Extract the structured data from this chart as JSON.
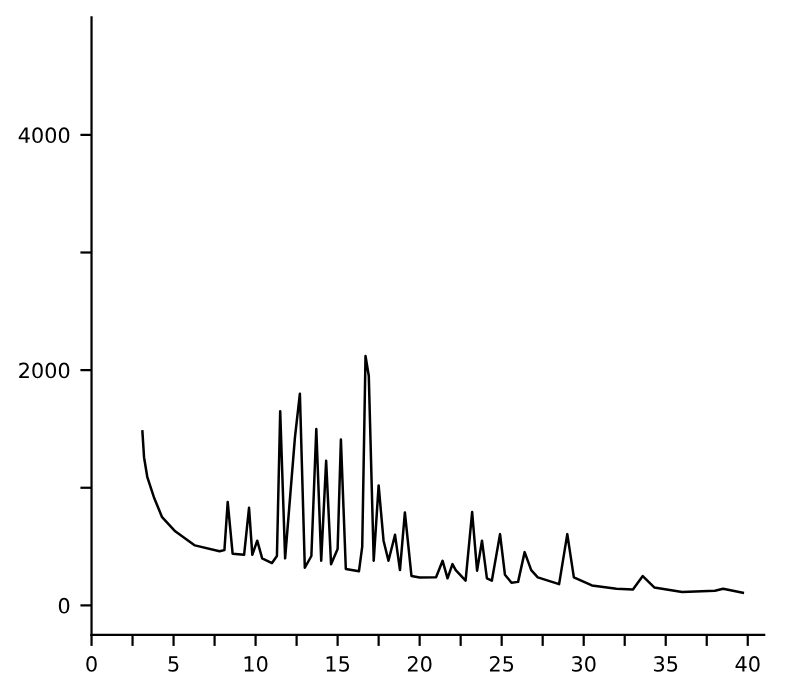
{
  "chart_data": {
    "type": "line",
    "series": [
      {
        "color": "#000000",
        "x": [
          3.1,
          3.2,
          3.4,
          3.8,
          4.3,
          5.1,
          6.3,
          7.8,
          8.1,
          8.3,
          8.6,
          9.3,
          9.6,
          9.8,
          10.1,
          10.4,
          11.0,
          11.3,
          11.5,
          11.8,
          12.4,
          12.7,
          13.0,
          13.4,
          13.7,
          14.0,
          14.3,
          14.6,
          15.0,
          15.2,
          15.5,
          16.3,
          16.5,
          16.7,
          16.9,
          17.2,
          17.5,
          17.8,
          18.1,
          18.5,
          18.8,
          19.1,
          19.5,
          20.0,
          21.0,
          21.4,
          21.7,
          22.0,
          22.2,
          22.8,
          23.2,
          23.5,
          23.8,
          24.1,
          24.4,
          24.9,
          25.2,
          25.6,
          26.0,
          26.4,
          26.8,
          27.2,
          28.5,
          29.0,
          29.4,
          30.5,
          32.0,
          33.0,
          33.6,
          34.3,
          36.0,
          38.0,
          38.5,
          39.7
        ],
        "values": [
          1480,
          1260,
          1090,
          920,
          750,
          630,
          510,
          460,
          470,
          880,
          440,
          430,
          830,
          430,
          550,
          400,
          360,
          420,
          1650,
          400,
          1430,
          1800,
          320,
          420,
          1500,
          380,
          1230,
          350,
          480,
          1410,
          310,
          290,
          500,
          2120,
          1950,
          380,
          1020,
          550,
          380,
          600,
          300,
          790,
          250,
          238,
          240,
          379,
          230,
          351,
          300,
          210,
          793,
          295,
          550,
          230,
          210,
          606,
          260,
          193,
          200,
          453,
          300,
          238,
          181,
          606,
          238,
          170,
          142,
          136,
          249,
          153,
          113,
          125,
          142,
          108
        ]
      }
    ],
    "xlim": [
      0,
      41
    ],
    "ylim": [
      -250,
      5000
    ],
    "xticks": [
      0,
      {
        "value": 2.5,
        "label": null
      },
      5,
      {
        "value": 7.5,
        "label": null
      },
      10,
      {
        "value": 12.5,
        "label": null
      },
      15,
      {
        "value": 17.5,
        "label": null
      },
      20,
      {
        "value": 22.5,
        "label": null
      },
      25,
      {
        "value": 27.5,
        "label": null
      },
      30,
      {
        "value": 32.5,
        "label": null
      },
      35,
      {
        "value": 37.5,
        "label": null
      },
      40
    ],
    "yticks": [
      0,
      {
        "value": 1000,
        "label": null
      },
      2000,
      {
        "value": 3000,
        "label": null
      },
      4000
    ],
    "grid": false,
    "line_style": "solid"
  }
}
